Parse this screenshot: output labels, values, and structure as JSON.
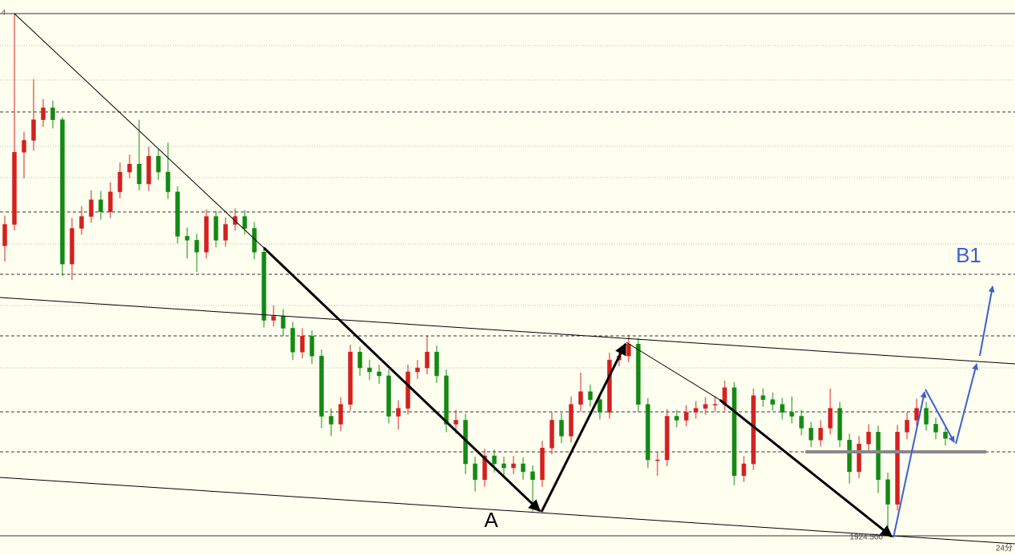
{
  "chart_data": {
    "type": "candlestick",
    "ylim": [
      1922,
      1992
    ],
    "up_color": "#d42020",
    "down_color": "#138a13",
    "open": [
      1961.0,
      1963.7,
      1972.8,
      1974.3,
      1976.9,
      1978.4,
      1976.9,
      1958.7,
      1963.2,
      1964.7,
      1966.8,
      1965.3,
      1967.8,
      1970.3,
      1971.3,
      1968.8,
      1972.3,
      1970.3,
      1967.8,
      1962.2,
      1961.7,
      1960.2,
      1964.7,
      1961.7,
      1963.7,
      1964.7,
      1963.2,
      1960.2,
      1951.6,
      1952.1,
      1950.6,
      1947.6,
      1949.6,
      1947.1,
      1939.5,
      1938.5,
      1941.0,
      1947.6,
      1945.6,
      1945.1,
      1944.6,
      1939.5,
      1940.5,
      1945.1,
      1945.6,
      1947.6,
      1944.6,
      1938.5,
      1939.0,
      1933.5,
      1931.5,
      1934.5,
      1933.5,
      1933.0,
      1933.5,
      1932.5,
      1931.5,
      1935.5,
      1939.0,
      1937.0,
      1941.0,
      1942.6,
      1941.6,
      1940.0,
      1946.6,
      1947.1,
      1948.6,
      1941.0,
      1934.0,
      1934.0,
      1939.5,
      1939.0,
      1940.0,
      1940.5,
      1941.0,
      1941.0,
      1943.1,
      1932.0,
      1933.5,
      1942.1,
      1941.6,
      1941.0,
      1940.0,
      1939.5,
      1938.0,
      1936.5,
      1938.0,
      1940.5,
      1936.5,
      1932.5,
      1936.0,
      1937.5,
      1931.5,
      1928.4,
      1937.5,
      1939.0,
      1940.5,
      1938.5,
      1937.5
    ],
    "high": [
      1964.8,
      1990.3,
      1975.4,
      1982.0,
      1979.5,
      1979.3,
      1977.2,
      1964.5,
      1966.0,
      1968.0,
      1967.9,
      1969.0,
      1971.5,
      1972.5,
      1976.9,
      1973.5,
      1973.2,
      1974.0,
      1968.5,
      1963.3,
      1962.5,
      1965.6,
      1965.4,
      1964.6,
      1965.7,
      1965.5,
      1964.0,
      1960.9,
      1953.5,
      1953.0,
      1951.4,
      1950.6,
      1950.3,
      1947.9,
      1940.5,
      1941.9,
      1948.5,
      1948.3,
      1946.6,
      1946.0,
      1945.4,
      1941.5,
      1946.0,
      1946.6,
      1949.6,
      1948.4,
      1945.4,
      1940.3,
      1939.8,
      1934.4,
      1935.4,
      1935.3,
      1934.4,
      1934.5,
      1934.3,
      1933.3,
      1936.4,
      1940.0,
      1939.9,
      1942.0,
      1945.0,
      1943.5,
      1942.4,
      1947.5,
      1948.0,
      1949.8,
      1949.4,
      1941.8,
      1935.0,
      1940.4,
      1940.3,
      1940.9,
      1941.4,
      1941.9,
      1942.0,
      1944.0,
      1943.8,
      1934.5,
      1943.0,
      1943.0,
      1942.5,
      1941.8,
      1942.0,
      1940.3,
      1938.8,
      1939.0,
      1943.0,
      1941.3,
      1937.3,
      1937.0,
      1938.5,
      1938.3,
      1932.4,
      1938.4,
      1940.0,
      1941.7,
      1941.3,
      1939.3,
      1938.3
    ],
    "low": [
      1959.0,
      1962.9,
      1969.5,
      1973.0,
      1976.0,
      1975.8,
      1957.2,
      1956.7,
      1962.4,
      1963.9,
      1964.3,
      1964.5,
      1967.0,
      1969.5,
      1968.0,
      1967.9,
      1969.3,
      1966.9,
      1961.3,
      1959.4,
      1957.7,
      1959.4,
      1960.8,
      1960.9,
      1962.9,
      1962.4,
      1959.3,
      1950.7,
      1950.8,
      1949.6,
      1946.6,
      1946.8,
      1946.1,
      1938.0,
      1937.0,
      1937.6,
      1940.2,
      1944.6,
      1944.1,
      1943.6,
      1938.6,
      1937.8,
      1939.7,
      1944.2,
      1944.8,
      1943.7,
      1937.5,
      1937.3,
      1932.2,
      1930.0,
      1930.6,
      1932.4,
      1931.9,
      1932.2,
      1931.5,
      1927.5,
      1930.6,
      1934.7,
      1936.1,
      1936.2,
      1940.1,
      1940.7,
      1939.1,
      1939.2,
      1945.8,
      1946.3,
      1940.1,
      1933.0,
      1932.0,
      1933.2,
      1938.1,
      1938.2,
      1939.2,
      1939.7,
      1940.1,
      1940.2,
      1930.8,
      1931.2,
      1932.7,
      1940.7,
      1940.2,
      1939.1,
      1938.6,
      1937.1,
      1935.6,
      1935.7,
      1937.2,
      1935.6,
      1931.0,
      1931.7,
      1935.2,
      1929.8,
      1924.5,
      1927.6,
      1936.6,
      1938.2,
      1937.7,
      1936.6,
      1935.8
    ],
    "close": [
      1963.7,
      1972.8,
      1974.3,
      1976.9,
      1978.4,
      1976.9,
      1958.7,
      1963.2,
      1964.7,
      1966.8,
      1965.3,
      1967.8,
      1970.3,
      1971.3,
      1968.8,
      1972.3,
      1970.3,
      1967.8,
      1962.2,
      1961.7,
      1960.2,
      1964.7,
      1961.7,
      1963.7,
      1964.7,
      1963.2,
      1960.2,
      1951.6,
      1952.1,
      1950.6,
      1947.6,
      1949.6,
      1947.1,
      1939.5,
      1938.5,
      1941.0,
      1947.6,
      1945.6,
      1945.1,
      1944.6,
      1939.5,
      1940.5,
      1945.1,
      1945.6,
      1947.6,
      1944.6,
      1938.5,
      1939.0,
      1933.5,
      1931.5,
      1934.5,
      1933.5,
      1933.0,
      1933.5,
      1932.5,
      1931.5,
      1935.5,
      1939.0,
      1937.0,
      1941.0,
      1942.6,
      1941.6,
      1940.0,
      1946.6,
      1947.1,
      1948.6,
      1941.0,
      1934.0,
      1934.0,
      1939.5,
      1939.0,
      1940.0,
      1940.5,
      1941.0,
      1941.0,
      1943.1,
      1932.0,
      1933.5,
      1942.1,
      1941.6,
      1941.0,
      1940.0,
      1939.5,
      1938.0,
      1936.5,
      1938.0,
      1940.5,
      1936.5,
      1932.5,
      1936.0,
      1937.5,
      1931.5,
      1928.4,
      1937.5,
      1939.0,
      1940.5,
      1938.5,
      1937.5,
      1936.7
    ],
    "annotations": [
      "A",
      "B1",
      "1924.500",
      "24分",
      "4"
    ]
  }
}
